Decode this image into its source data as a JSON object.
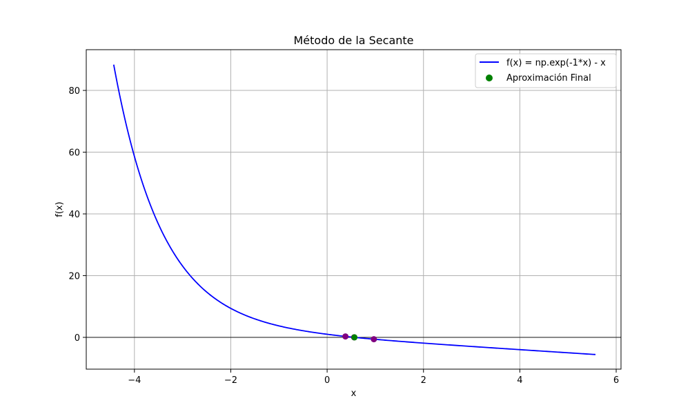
{
  "chart_data": {
    "type": "line",
    "title": "Método de la Secante",
    "xlabel": "x",
    "ylabel": "f(x)",
    "xlim": [
      -5.0,
      6.1
    ],
    "ylim": [
      -10.3,
      93.2
    ],
    "x_ticks": [
      -4,
      -2,
      0,
      2,
      4,
      6
    ],
    "x_tick_labels": [
      "−4",
      "−2",
      "0",
      "2",
      "4",
      "6"
    ],
    "y_ticks": [
      0,
      20,
      40,
      60,
      80
    ],
    "y_tick_labels": [
      "0",
      "20",
      "40",
      "60",
      "80"
    ],
    "grid": true,
    "legend_position": "top-right",
    "zero_line": true,
    "series": [
      {
        "name": "f(x) = np.exp(-1*x) - x",
        "kind": "line",
        "color": "#0000ff",
        "function": "exp(-x) - x",
        "x_range": [
          -4.43,
          5.57
        ]
      },
      {
        "name": "Aproximación Final",
        "kind": "scatter",
        "color": "#008000",
        "points": [
          [
            0.567,
            0.0
          ]
        ]
      },
      {
        "name": "",
        "kind": "scatter",
        "color": "#800080",
        "points": [
          [
            0.38,
            0.3
          ],
          [
            0.97,
            -0.59
          ],
          [
            0.56,
            0.01
          ]
        ]
      }
    ]
  },
  "colors": {
    "axes": "#000000",
    "grid": "#b0b0b0",
    "legend_border": "#cccccc"
  }
}
